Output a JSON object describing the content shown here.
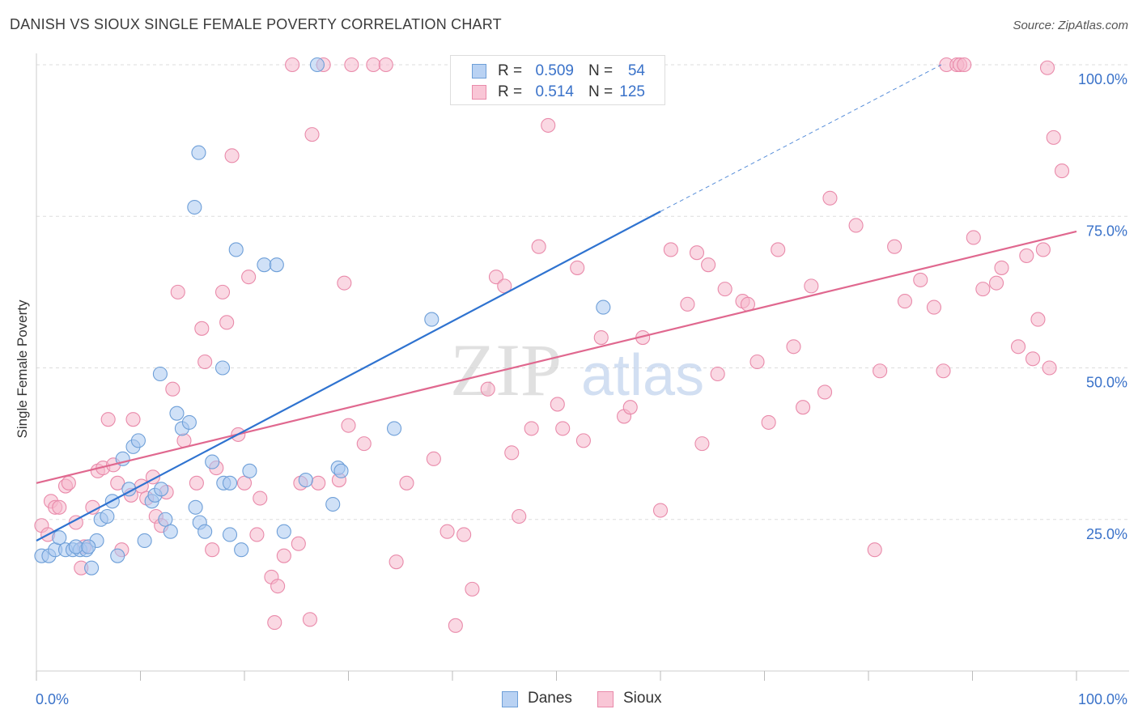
{
  "header": {
    "title": "DANISH VS SIOUX SINGLE FEMALE POVERTY CORRELATION CHART",
    "source": "Source: ZipAtlas.com"
  },
  "watermark": {
    "part1": "ZIP",
    "part2": "atlas"
  },
  "legend": {
    "rows": [
      {
        "r_label": "R =",
        "r_value": "0.509",
        "n_label": "N =",
        "n_value": "54"
      },
      {
        "r_label": "R =",
        "r_value": "0.514",
        "n_label": "N =",
        "n_value": "125"
      }
    ],
    "bottom": [
      {
        "label": "Danes"
      },
      {
        "label": "Sioux"
      }
    ]
  },
  "colors": {
    "danes_fill": "#a9c8f0",
    "danes_stroke": "#6e9fd8",
    "danes_line": "#2f73d0",
    "sioux_fill": "#f6b8cc",
    "sioux_stroke": "#e98aaa",
    "sioux_line": "#e0688f",
    "tick_label": "#3a72c9",
    "grid": "#dddddd"
  },
  "chart_data": {
    "type": "scatter",
    "title": "DANISH VS SIOUX SINGLE FEMALE POVERTY CORRELATION CHART",
    "xlabel": "",
    "ylabel": "Single Female Poverty",
    "xlim": [
      0,
      100
    ],
    "ylim": [
      0,
      100
    ],
    "x_tick_labels": [
      "0.0%",
      "100.0%"
    ],
    "y_tick_labels": [
      "25.0%",
      "50.0%",
      "75.0%",
      "100.0%"
    ],
    "y_ticks": [
      25,
      50,
      75,
      100
    ],
    "grid": "dashed horizontal",
    "legend_position": "top-center and bottom",
    "series": [
      {
        "name": "Danes",
        "r": 0.509,
        "n": 54,
        "trend": {
          "x0": 0,
          "y0": 21.5,
          "x1": 60,
          "y1": 75.8,
          "dashed_to_x": 87,
          "dashed_to_y": 100
        },
        "points": [
          [
            0.5,
            19
          ],
          [
            1.2,
            19
          ],
          [
            1.8,
            20
          ],
          [
            2.2,
            22
          ],
          [
            2.8,
            20
          ],
          [
            3.5,
            20
          ],
          [
            4.2,
            20
          ],
          [
            4.8,
            20
          ],
          [
            5.3,
            17
          ],
          [
            5.8,
            21.5
          ],
          [
            6.2,
            25
          ],
          [
            6.8,
            25.5
          ],
          [
            7.3,
            28
          ],
          [
            7.8,
            19
          ],
          [
            8.3,
            35
          ],
          [
            8.9,
            30
          ],
          [
            9.3,
            37
          ],
          [
            9.8,
            38
          ],
          [
            10.4,
            21.5
          ],
          [
            11.1,
            28
          ],
          [
            11.4,
            29
          ],
          [
            12,
            30
          ],
          [
            12.4,
            25
          ],
          [
            12.9,
            23
          ],
          [
            13.5,
            42.5
          ],
          [
            14,
            40
          ],
          [
            14.7,
            41
          ],
          [
            15.3,
            27
          ],
          [
            15.7,
            24.5
          ],
          [
            16.2,
            23
          ],
          [
            16.9,
            34.5
          ],
          [
            18,
            31
          ],
          [
            18.6,
            22.5
          ],
          [
            19.7,
            20
          ],
          [
            20.5,
            33
          ],
          [
            21.9,
            67
          ],
          [
            23.1,
            67
          ],
          [
            23.8,
            23
          ],
          [
            25.9,
            31.5
          ],
          [
            28.5,
            27.5
          ],
          [
            29,
            33.5
          ],
          [
            29.3,
            33
          ],
          [
            27,
            100
          ],
          [
            15.6,
            85.5
          ],
          [
            15.2,
            76.5
          ],
          [
            19.2,
            69.5
          ],
          [
            17.9,
            50
          ],
          [
            11.9,
            49
          ],
          [
            34.4,
            40
          ],
          [
            38,
            58
          ],
          [
            3.8,
            20.5
          ],
          [
            5,
            20.5
          ],
          [
            18.6,
            31
          ],
          [
            54.5,
            60
          ]
        ]
      },
      {
        "name": "Sioux",
        "r": 0.514,
        "n": 125,
        "trend": {
          "x0": 0,
          "y0": 31,
          "x1": 100,
          "y1": 72.5
        },
        "points": [
          [
            0.5,
            24
          ],
          [
            1.1,
            22.5
          ],
          [
            1.4,
            28
          ],
          [
            1.8,
            27
          ],
          [
            2.2,
            27
          ],
          [
            2.8,
            30.5
          ],
          [
            3.1,
            31
          ],
          [
            3.8,
            24.5
          ],
          [
            4.3,
            17
          ],
          [
            4.6,
            20.5
          ],
          [
            5.4,
            27
          ],
          [
            5.9,
            33
          ],
          [
            6.4,
            33.5
          ],
          [
            6.9,
            41.5
          ],
          [
            7.4,
            34
          ],
          [
            7.8,
            31
          ],
          [
            8.2,
            20
          ],
          [
            9.1,
            29
          ],
          [
            9.3,
            41.5
          ],
          [
            10.1,
            30.5
          ],
          [
            10.6,
            28.5
          ],
          [
            11.2,
            32
          ],
          [
            11.5,
            25.5
          ],
          [
            12,
            24
          ],
          [
            12.5,
            29.5
          ],
          [
            13.1,
            46.5
          ],
          [
            13.6,
            62.5
          ],
          [
            14.2,
            38
          ],
          [
            15.4,
            31
          ],
          [
            15.9,
            56.5
          ],
          [
            16.2,
            51
          ],
          [
            16.9,
            20
          ],
          [
            17.3,
            33.5
          ],
          [
            17.9,
            62.5
          ],
          [
            18.3,
            57.5
          ],
          [
            18.8,
            85
          ],
          [
            19.4,
            39
          ],
          [
            20,
            31
          ],
          [
            20.4,
            65
          ],
          [
            21.2,
            22.5
          ],
          [
            21.5,
            28.5
          ],
          [
            22.6,
            15.5
          ],
          [
            22.9,
            8
          ],
          [
            23.2,
            14
          ],
          [
            23.8,
            19
          ],
          [
            24.6,
            100
          ],
          [
            25.2,
            21
          ],
          [
            25.4,
            31
          ],
          [
            26.3,
            8.5
          ],
          [
            26.5,
            88.5
          ],
          [
            27.1,
            31
          ],
          [
            27.6,
            100
          ],
          [
            29.1,
            31.5
          ],
          [
            29.6,
            64
          ],
          [
            30,
            40.5
          ],
          [
            30.3,
            100
          ],
          [
            31.5,
            37.5
          ],
          [
            32.4,
            100
          ],
          [
            33.6,
            100
          ],
          [
            34.6,
            18
          ],
          [
            35.6,
            31
          ],
          [
            38.2,
            35
          ],
          [
            39.5,
            23
          ],
          [
            40.3,
            7.5
          ],
          [
            41.1,
            22.5
          ],
          [
            41.9,
            13.5
          ],
          [
            43.4,
            46.5
          ],
          [
            44.2,
            65
          ],
          [
            45,
            63.5
          ],
          [
            45.7,
            36
          ],
          [
            46.4,
            25.5
          ],
          [
            47.6,
            40
          ],
          [
            48.3,
            70
          ],
          [
            49.2,
            90
          ],
          [
            50.1,
            44
          ],
          [
            50.6,
            40
          ],
          [
            52,
            66.5
          ],
          [
            52.6,
            38
          ],
          [
            53.5,
            100
          ],
          [
            54.3,
            55
          ],
          [
            56.5,
            42
          ],
          [
            57.1,
            43.5
          ],
          [
            58.3,
            55
          ],
          [
            59.7,
            100
          ],
          [
            60,
            26.5
          ],
          [
            61,
            69.5
          ],
          [
            62.6,
            60.5
          ],
          [
            63.5,
            69
          ],
          [
            64,
            37.5
          ],
          [
            64.6,
            67
          ],
          [
            65.5,
            49
          ],
          [
            66.2,
            63
          ],
          [
            67.9,
            61
          ],
          [
            68.4,
            60.5
          ],
          [
            69.3,
            51
          ],
          [
            70.4,
            41
          ],
          [
            71.3,
            69.5
          ],
          [
            72.8,
            53.5
          ],
          [
            73.7,
            43.5
          ],
          [
            74.5,
            63.5
          ],
          [
            75.8,
            46
          ],
          [
            76.3,
            78
          ],
          [
            78.8,
            73.5
          ],
          [
            80.6,
            20
          ],
          [
            81.1,
            49.5
          ],
          [
            82.5,
            70
          ],
          [
            83.5,
            61
          ],
          [
            85,
            64.5
          ],
          [
            86.3,
            60
          ],
          [
            87.2,
            49.5
          ],
          [
            87.5,
            100
          ],
          [
            88.5,
            100
          ],
          [
            88.8,
            100
          ],
          [
            89.2,
            100
          ],
          [
            90.1,
            71.5
          ],
          [
            91,
            63
          ],
          [
            92.3,
            64
          ],
          [
            92.8,
            66.5
          ],
          [
            94.4,
            53.5
          ],
          [
            95.2,
            68.5
          ],
          [
            95.8,
            51.5
          ],
          [
            96.3,
            58
          ],
          [
            97.2,
            99.5
          ],
          [
            97.8,
            88
          ],
          [
            98.6,
            82.5
          ],
          [
            96.8,
            69.5
          ],
          [
            97.4,
            50
          ]
        ]
      }
    ]
  }
}
